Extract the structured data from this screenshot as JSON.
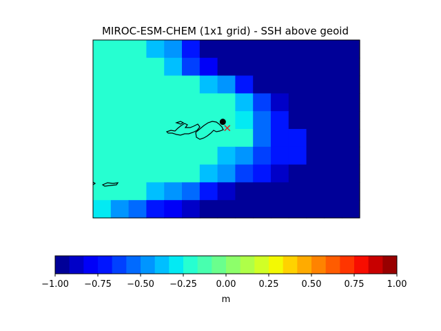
{
  "chart_data": {
    "type": "heatmap",
    "title": "MIROC-ESM-CHEM (1x1 grid) - SSH above geoid",
    "xlabel": "",
    "ylabel": "",
    "grid": false,
    "colormap": "jet",
    "color_range": [
      -1.0,
      1.0
    ],
    "colorbar": {
      "orientation": "horizontal",
      "placement": "bottom",
      "label": "m",
      "levels": 24,
      "ticks": [
        -1.0,
        -0.75,
        -0.5,
        -0.25,
        0.0,
        0.25,
        0.5,
        0.75,
        1.0
      ],
      "tick_labels": [
        "−1.00",
        "−0.75",
        "−0.50",
        "−0.25",
        "0.00",
        "0.25",
        "0.50",
        "0.75",
        "1.00"
      ]
    },
    "grid_rows": 10,
    "grid_cols": 15,
    "values": [
      [
        -0.17,
        -0.17,
        -0.17,
        -0.35,
        -0.46,
        -0.71,
        -0.92,
        -1,
        -1,
        -1,
        -1,
        -1,
        -1,
        -1,
        -1
      ],
      [
        -0.17,
        -0.17,
        -0.17,
        -0.25,
        -0.38,
        -0.61,
        -0.78,
        -0.92,
        -1,
        -1,
        -1,
        -1,
        -1,
        -1,
        -1
      ],
      [
        -0.17,
        -0.17,
        -0.17,
        -0.17,
        -0.17,
        -0.25,
        -0.38,
        -0.48,
        -0.74,
        -0.96,
        -1,
        -1,
        -1,
        -1,
        -1
      ],
      [
        -0.17,
        -0.17,
        -0.17,
        -0.17,
        -0.17,
        -0.17,
        -0.17,
        -0.25,
        -0.38,
        -0.65,
        -0.88,
        -1,
        -1,
        -1,
        -1
      ],
      [
        -0.17,
        -0.17,
        -0.17,
        -0.17,
        -0.17,
        -0.17,
        -0.17,
        -0.17,
        -0.29,
        -0.54,
        -0.71,
        -0.92,
        -1,
        -1,
        -1
      ],
      [
        -0.17,
        -0.17,
        -0.17,
        -0.17,
        -0.17,
        -0.17,
        -0.17,
        -0.17,
        -0.25,
        -0.54,
        -0.71,
        -0.71,
        -1,
        -1,
        -1
      ],
      [
        -0.17,
        -0.17,
        -0.17,
        -0.17,
        -0.17,
        -0.25,
        -0.25,
        -0.38,
        -0.46,
        -0.61,
        -0.71,
        -0.71,
        -1,
        -1,
        -1
      ],
      [
        -0.17,
        -0.17,
        -0.17,
        -0.17,
        -0.25,
        -0.25,
        -0.38,
        -0.5,
        -0.61,
        -0.71,
        -0.84,
        -1,
        -1,
        -1,
        -1
      ],
      [
        -0.17,
        -0.25,
        -0.25,
        -0.38,
        -0.46,
        -0.54,
        -0.71,
        -0.84,
        -0.92,
        -1,
        -1,
        -1,
        -1,
        -1,
        -1
      ],
      [
        -0.29,
        -0.46,
        -0.58,
        -0.75,
        -0.83,
        -0.88,
        -0.96,
        -1,
        -1,
        -1,
        -1,
        -1,
        -1,
        -1,
        -1
      ]
    ],
    "markers": [
      {
        "shape": "circle",
        "color": "#000000",
        "col": 7.3,
        "row": 4.6
      },
      {
        "shape": "x",
        "color": "#d62728",
        "col": 7.55,
        "row": 4.95
      }
    ]
  }
}
